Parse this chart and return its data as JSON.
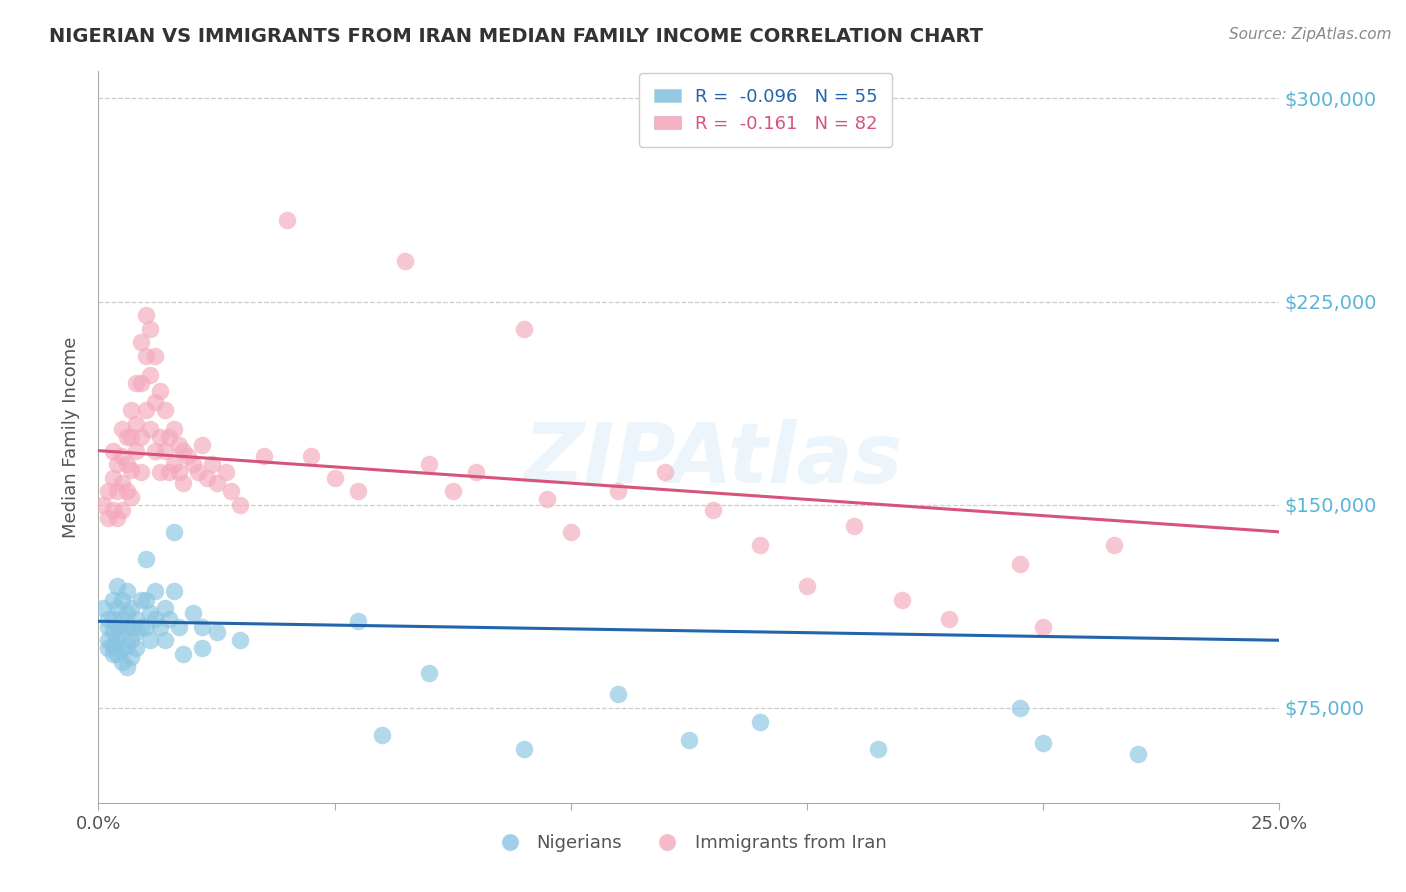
{
  "title": "NIGERIAN VS IMMIGRANTS FROM IRAN MEDIAN FAMILY INCOME CORRELATION CHART",
  "source": "Source: ZipAtlas.com",
  "ylabel": "Median Family Income",
  "watermark": "ZIPAtlas",
  "xmin": 0.0,
  "xmax": 0.25,
  "ymin": 40000,
  "ymax": 310000,
  "yticks": [
    75000,
    150000,
    225000,
    300000
  ],
  "ytick_labels": [
    "$75,000",
    "$150,000",
    "$225,000",
    "$300,000"
  ],
  "blue_color": "#89c4e1",
  "pink_color": "#f4a8bc",
  "blue_line_color": "#2166ac",
  "pink_line_color": "#d6547a",
  "title_color": "#333333",
  "source_color": "#888888",
  "right_tick_color": "#5ab4d9",
  "blue_scatter": [
    [
      0.001,
      112000
    ],
    [
      0.002,
      108000
    ],
    [
      0.002,
      105000
    ],
    [
      0.002,
      100000
    ],
    [
      0.002,
      97000
    ],
    [
      0.003,
      115000
    ],
    [
      0.003,
      108000
    ],
    [
      0.003,
      103000
    ],
    [
      0.003,
      98000
    ],
    [
      0.003,
      95000
    ],
    [
      0.004,
      120000
    ],
    [
      0.004,
      112000
    ],
    [
      0.004,
      105000
    ],
    [
      0.004,
      100000
    ],
    [
      0.004,
      95000
    ],
    [
      0.005,
      115000
    ],
    [
      0.005,
      108000
    ],
    [
      0.005,
      103000
    ],
    [
      0.005,
      97000
    ],
    [
      0.005,
      92000
    ],
    [
      0.006,
      118000
    ],
    [
      0.006,
      110000
    ],
    [
      0.006,
      105000
    ],
    [
      0.006,
      98000
    ],
    [
      0.006,
      90000
    ],
    [
      0.007,
      112000
    ],
    [
      0.007,
      105000
    ],
    [
      0.007,
      100000
    ],
    [
      0.007,
      94000
    ],
    [
      0.008,
      108000
    ],
    [
      0.008,
      103000
    ],
    [
      0.008,
      97000
    ],
    [
      0.009,
      115000
    ],
    [
      0.009,
      105000
    ],
    [
      0.01,
      130000
    ],
    [
      0.01,
      115000
    ],
    [
      0.01,
      105000
    ],
    [
      0.011,
      110000
    ],
    [
      0.011,
      100000
    ],
    [
      0.012,
      118000
    ],
    [
      0.012,
      108000
    ],
    [
      0.013,
      105000
    ],
    [
      0.014,
      112000
    ],
    [
      0.014,
      100000
    ],
    [
      0.015,
      108000
    ],
    [
      0.016,
      140000
    ],
    [
      0.016,
      118000
    ],
    [
      0.017,
      105000
    ],
    [
      0.018,
      95000
    ],
    [
      0.02,
      110000
    ],
    [
      0.022,
      105000
    ],
    [
      0.022,
      97000
    ],
    [
      0.025,
      103000
    ],
    [
      0.03,
      100000
    ],
    [
      0.055,
      107000
    ],
    [
      0.06,
      65000
    ],
    [
      0.07,
      88000
    ],
    [
      0.09,
      60000
    ],
    [
      0.11,
      80000
    ],
    [
      0.125,
      63000
    ],
    [
      0.14,
      70000
    ],
    [
      0.165,
      60000
    ],
    [
      0.195,
      75000
    ],
    [
      0.2,
      62000
    ],
    [
      0.22,
      58000
    ]
  ],
  "pink_scatter": [
    [
      0.001,
      150000
    ],
    [
      0.002,
      155000
    ],
    [
      0.002,
      145000
    ],
    [
      0.003,
      170000
    ],
    [
      0.003,
      160000
    ],
    [
      0.003,
      148000
    ],
    [
      0.004,
      165000
    ],
    [
      0.004,
      155000
    ],
    [
      0.004,
      145000
    ],
    [
      0.005,
      178000
    ],
    [
      0.005,
      168000
    ],
    [
      0.005,
      158000
    ],
    [
      0.005,
      148000
    ],
    [
      0.006,
      175000
    ],
    [
      0.006,
      165000
    ],
    [
      0.006,
      155000
    ],
    [
      0.007,
      185000
    ],
    [
      0.007,
      175000
    ],
    [
      0.007,
      163000
    ],
    [
      0.007,
      153000
    ],
    [
      0.008,
      195000
    ],
    [
      0.008,
      180000
    ],
    [
      0.008,
      170000
    ],
    [
      0.009,
      210000
    ],
    [
      0.009,
      195000
    ],
    [
      0.009,
      175000
    ],
    [
      0.009,
      162000
    ],
    [
      0.01,
      220000
    ],
    [
      0.01,
      205000
    ],
    [
      0.01,
      185000
    ],
    [
      0.011,
      215000
    ],
    [
      0.011,
      198000
    ],
    [
      0.011,
      178000
    ],
    [
      0.012,
      205000
    ],
    [
      0.012,
      188000
    ],
    [
      0.012,
      170000
    ],
    [
      0.013,
      192000
    ],
    [
      0.013,
      175000
    ],
    [
      0.013,
      162000
    ],
    [
      0.014,
      185000
    ],
    [
      0.014,
      170000
    ],
    [
      0.015,
      175000
    ],
    [
      0.015,
      162000
    ],
    [
      0.016,
      178000
    ],
    [
      0.016,
      165000
    ],
    [
      0.017,
      172000
    ],
    [
      0.017,
      162000
    ],
    [
      0.018,
      170000
    ],
    [
      0.018,
      158000
    ],
    [
      0.019,
      168000
    ],
    [
      0.02,
      165000
    ],
    [
      0.021,
      162000
    ],
    [
      0.022,
      172000
    ],
    [
      0.023,
      160000
    ],
    [
      0.024,
      165000
    ],
    [
      0.025,
      158000
    ],
    [
      0.027,
      162000
    ],
    [
      0.028,
      155000
    ],
    [
      0.03,
      150000
    ],
    [
      0.035,
      168000
    ],
    [
      0.04,
      255000
    ],
    [
      0.045,
      168000
    ],
    [
      0.05,
      160000
    ],
    [
      0.055,
      155000
    ],
    [
      0.065,
      240000
    ],
    [
      0.07,
      165000
    ],
    [
      0.075,
      155000
    ],
    [
      0.08,
      162000
    ],
    [
      0.09,
      215000
    ],
    [
      0.095,
      152000
    ],
    [
      0.1,
      140000
    ],
    [
      0.11,
      155000
    ],
    [
      0.12,
      162000
    ],
    [
      0.13,
      148000
    ],
    [
      0.14,
      135000
    ],
    [
      0.15,
      120000
    ],
    [
      0.16,
      142000
    ],
    [
      0.17,
      115000
    ],
    [
      0.18,
      108000
    ],
    [
      0.195,
      128000
    ],
    [
      0.2,
      105000
    ],
    [
      0.215,
      135000
    ]
  ],
  "blue_line": {
    "x0": 0.0,
    "x1": 0.25,
    "y0": 107000,
    "y1": 100000
  },
  "pink_line": {
    "x0": 0.0,
    "x1": 0.25,
    "y0": 170000,
    "y1": 140000
  }
}
